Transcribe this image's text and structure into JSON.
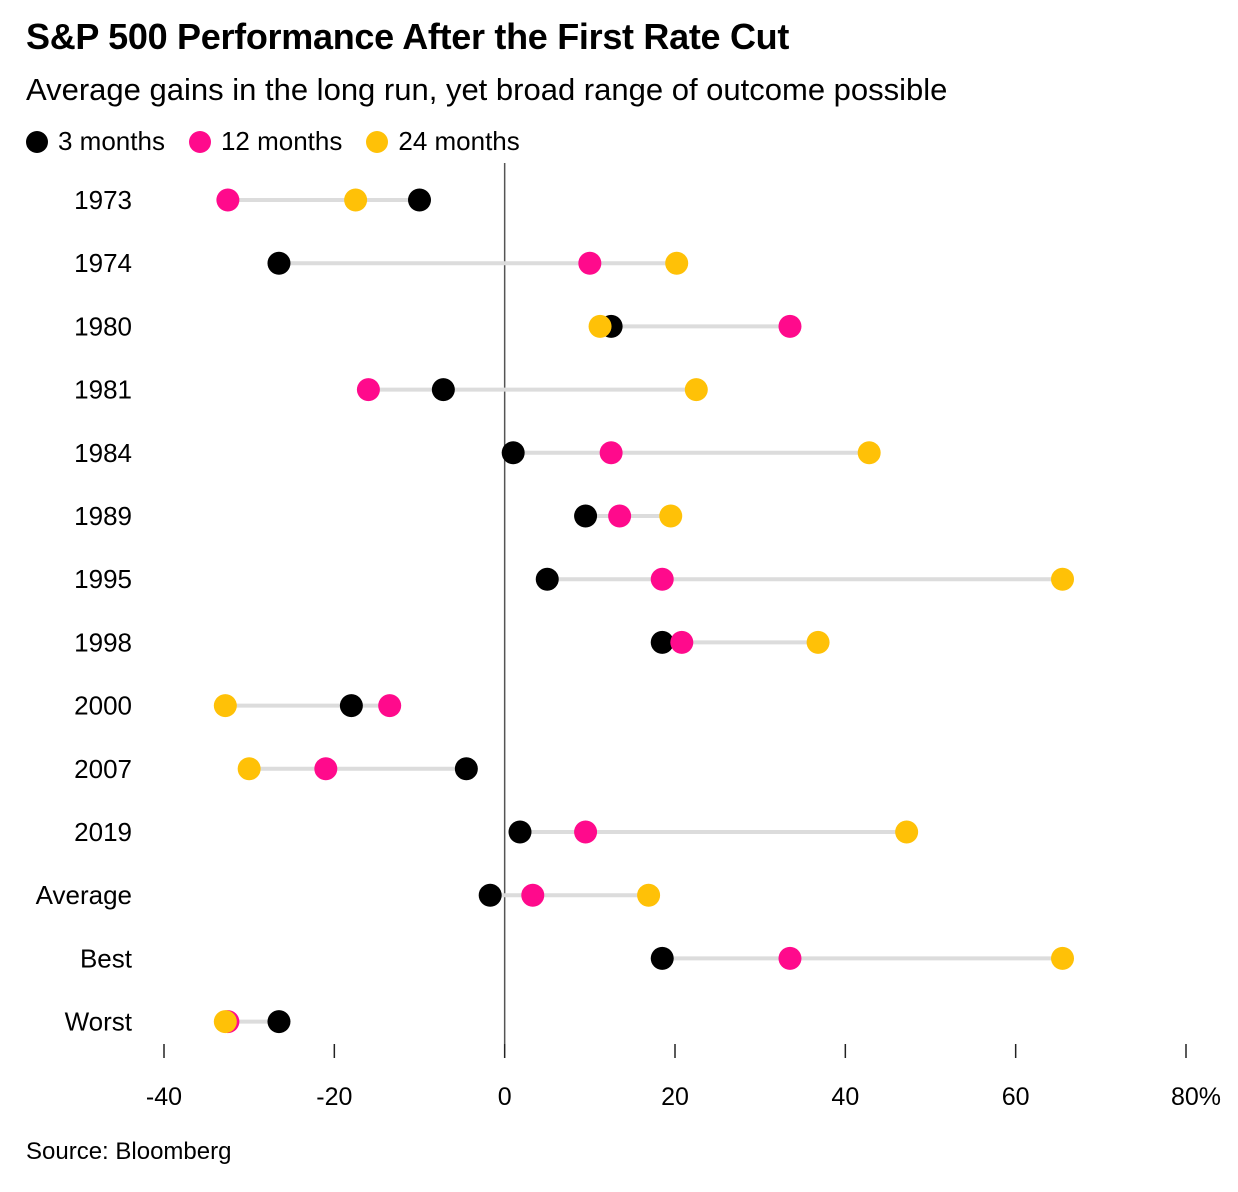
{
  "chart_data": {
    "type": "dot-range",
    "title": "S&P 500 Performance After the First Rate Cut",
    "subtitle": "Average gains in the long run, yet broad range of outcome possible",
    "source": "Source: Bloomberg",
    "xlim": [
      -40,
      80
    ],
    "x_ticks": [
      -40,
      -20,
      0,
      20,
      40,
      60,
      80
    ],
    "x_tick_labels": [
      "-40",
      "-20",
      "0",
      "20",
      "40",
      "60",
      "80%"
    ],
    "grid": false,
    "legend_position": "top-left",
    "categories": [
      "1973",
      "1974",
      "1980",
      "1981",
      "1984",
      "1989",
      "1995",
      "1998",
      "2000",
      "2007",
      "2019",
      "Average",
      "Best",
      "Worst"
    ],
    "series": [
      {
        "name": "3 months",
        "color": "#000000",
        "values": [
          -10,
          -26.5,
          12.5,
          -7.2,
          1,
          9.5,
          5,
          18.5,
          -18,
          -4.5,
          1.8,
          -1.7,
          18.5,
          -26.5
        ]
      },
      {
        "name": "12 months",
        "color": "#ff0a8c",
        "values": [
          -32.5,
          10,
          33.5,
          -16,
          12.5,
          13.5,
          18.5,
          20.8,
          -13.5,
          -21,
          9.5,
          3.3,
          33.5,
          -32.5
        ]
      },
      {
        "name": "24 months",
        "color": "#ffc107",
        "values": [
          -17.5,
          20.2,
          11.2,
          22.5,
          42.8,
          19.5,
          65.5,
          36.8,
          -32.8,
          -30,
          47.2,
          16.9,
          65.5,
          -32.8
        ]
      }
    ]
  }
}
